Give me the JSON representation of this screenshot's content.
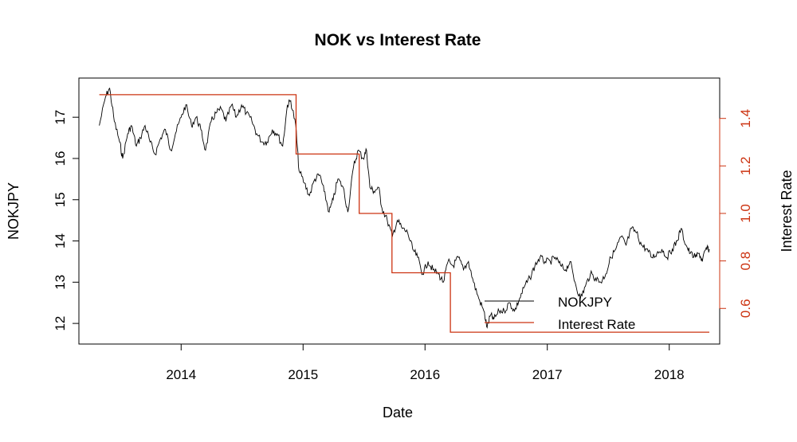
{
  "chart_data": {
    "type": "line",
    "title": "NOK vs Interest Rate",
    "xlabel": "Date",
    "ylabel": "NOKJPY",
    "ylabel_right": "Interest Rate",
    "x_ticks": [
      "2014",
      "2015",
      "2016",
      "2017",
      "2018"
    ],
    "x_range": [
      "2013-03-01",
      "2018-06-01"
    ],
    "y_ticks": [
      "12",
      "13",
      "14",
      "15",
      "16",
      "17"
    ],
    "ylim": [
      11.5,
      17.95
    ],
    "y_right_ticks": [
      "0.6",
      "0.8",
      "1.0",
      "1.2",
      "1.4"
    ],
    "ylim_right": [
      0.45,
      1.57
    ],
    "grid": false,
    "legend_position": "bottom-right",
    "colors": {
      "nokjpy": "#000000",
      "rate": "#cc3311",
      "axis": "#000000"
    },
    "series": [
      {
        "name": "NOKJPY",
        "axis": "left",
        "points": [
          [
            "2013-05-01",
            16.8
          ],
          [
            "2013-05-20",
            17.5
          ],
          [
            "2013-06-01",
            17.7
          ],
          [
            "2013-06-15",
            16.9
          ],
          [
            "2013-07-01",
            16.4
          ],
          [
            "2013-07-10",
            16.0
          ],
          [
            "2013-07-25",
            16.6
          ],
          [
            "2013-08-05",
            16.8
          ],
          [
            "2013-08-20",
            16.3
          ],
          [
            "2013-09-01",
            16.5
          ],
          [
            "2013-09-15",
            16.8
          ],
          [
            "2013-09-30",
            16.4
          ],
          [
            "2013-10-15",
            16.1
          ],
          [
            "2013-11-01",
            16.5
          ],
          [
            "2013-11-15",
            16.7
          ],
          [
            "2013-12-01",
            16.2
          ],
          [
            "2013-12-15",
            16.6
          ],
          [
            "2014-01-01",
            17.0
          ],
          [
            "2014-01-15",
            17.3
          ],
          [
            "2014-02-01",
            16.8
          ],
          [
            "2014-02-15",
            17.0
          ],
          [
            "2014-03-01",
            16.7
          ],
          [
            "2014-03-15",
            16.2
          ],
          [
            "2014-04-01",
            16.9
          ],
          [
            "2014-04-15",
            17.1
          ],
          [
            "2014-05-01",
            17.2
          ],
          [
            "2014-05-15",
            16.9
          ],
          [
            "2014-06-01",
            17.3
          ],
          [
            "2014-06-15",
            17.0
          ],
          [
            "2014-07-01",
            17.3
          ],
          [
            "2014-07-15",
            17.1
          ],
          [
            "2014-08-01",
            16.9
          ],
          [
            "2014-08-15",
            16.6
          ],
          [
            "2014-09-01",
            16.4
          ],
          [
            "2014-09-15",
            16.4
          ],
          [
            "2014-10-01",
            16.7
          ],
          [
            "2014-10-15",
            16.6
          ],
          [
            "2014-11-01",
            16.3
          ],
          [
            "2014-11-15",
            17.3
          ],
          [
            "2014-11-25",
            17.4
          ],
          [
            "2014-12-10",
            16.8
          ],
          [
            "2014-12-20",
            15.7
          ],
          [
            "2015-01-05",
            15.4
          ],
          [
            "2015-01-20",
            15.1
          ],
          [
            "2015-02-05",
            15.5
          ],
          [
            "2015-02-20",
            15.6
          ],
          [
            "2015-03-05",
            15.2
          ],
          [
            "2015-03-20",
            14.7
          ],
          [
            "2015-04-01",
            15.0
          ],
          [
            "2015-04-15",
            15.5
          ],
          [
            "2015-05-01",
            15.3
          ],
          [
            "2015-05-15",
            14.7
          ],
          [
            "2015-06-01",
            15.8
          ],
          [
            "2015-06-15",
            16.2
          ],
          [
            "2015-06-30",
            16.0
          ],
          [
            "2015-07-10",
            16.2
          ],
          [
            "2015-07-20",
            15.3
          ],
          [
            "2015-08-01",
            15.2
          ],
          [
            "2015-08-15",
            15.3
          ],
          [
            "2015-08-25",
            14.8
          ],
          [
            "2015-09-10",
            14.5
          ],
          [
            "2015-09-25",
            14.1
          ],
          [
            "2015-10-10",
            14.5
          ],
          [
            "2015-10-25",
            14.3
          ],
          [
            "2015-11-10",
            14.2
          ],
          [
            "2015-11-25",
            13.8
          ],
          [
            "2015-12-10",
            13.6
          ],
          [
            "2015-12-25",
            13.2
          ],
          [
            "2016-01-10",
            13.5
          ],
          [
            "2016-01-25",
            13.3
          ],
          [
            "2016-02-10",
            13.2
          ],
          [
            "2016-02-25",
            13.0
          ],
          [
            "2016-03-10",
            13.5
          ],
          [
            "2016-03-25",
            13.4
          ],
          [
            "2016-04-10",
            13.6
          ],
          [
            "2016-04-25",
            13.3
          ],
          [
            "2016-05-10",
            13.5
          ],
          [
            "2016-05-25",
            13.0
          ],
          [
            "2016-06-10",
            12.6
          ],
          [
            "2016-06-25",
            12.3
          ],
          [
            "2016-07-05",
            11.9
          ],
          [
            "2016-07-15",
            12.2
          ],
          [
            "2016-07-25",
            12.1
          ],
          [
            "2016-08-10",
            12.3
          ],
          [
            "2016-08-25",
            12.3
          ],
          [
            "2016-09-10",
            12.5
          ],
          [
            "2016-09-25",
            12.3
          ],
          [
            "2016-10-10",
            12.6
          ],
          [
            "2016-10-25",
            12.9
          ],
          [
            "2016-11-10",
            13.1
          ],
          [
            "2016-11-25",
            13.4
          ],
          [
            "2016-12-10",
            13.6
          ],
          [
            "2016-12-25",
            13.5
          ],
          [
            "2017-01-10",
            13.5
          ],
          [
            "2017-01-25",
            13.6
          ],
          [
            "2017-02-10",
            13.4
          ],
          [
            "2017-02-25",
            13.3
          ],
          [
            "2017-03-10",
            13.5
          ],
          [
            "2017-03-25",
            13.0
          ],
          [
            "2017-04-10",
            12.6
          ],
          [
            "2017-04-25",
            12.9
          ],
          [
            "2017-05-10",
            13.2
          ],
          [
            "2017-05-25",
            13.1
          ],
          [
            "2017-06-10",
            13.0
          ],
          [
            "2017-06-25",
            13.2
          ],
          [
            "2017-07-10",
            13.6
          ],
          [
            "2017-07-25",
            13.8
          ],
          [
            "2017-08-10",
            14.1
          ],
          [
            "2017-08-25",
            13.9
          ],
          [
            "2017-09-10",
            14.3
          ],
          [
            "2017-09-25",
            14.2
          ],
          [
            "2017-10-10",
            13.9
          ],
          [
            "2017-10-25",
            13.8
          ],
          [
            "2017-11-10",
            13.6
          ],
          [
            "2017-11-25",
            13.7
          ],
          [
            "2017-12-10",
            13.8
          ],
          [
            "2017-12-25",
            13.6
          ],
          [
            "2018-01-10",
            13.8
          ],
          [
            "2018-01-25",
            14.0
          ],
          [
            "2018-02-05",
            14.3
          ],
          [
            "2018-02-20",
            13.9
          ],
          [
            "2018-03-05",
            13.7
          ],
          [
            "2018-03-20",
            13.6
          ],
          [
            "2018-04-01",
            13.7
          ],
          [
            "2018-04-10",
            13.5
          ],
          [
            "2018-04-20",
            13.8
          ],
          [
            "2018-05-01",
            13.8
          ]
        ]
      },
      {
        "name": "Interest Rate",
        "axis": "right",
        "step": true,
        "points": [
          [
            "2013-05-01",
            1.5
          ],
          [
            "2014-12-11",
            1.5
          ],
          [
            "2014-12-11",
            1.25
          ],
          [
            "2015-06-18",
            1.25
          ],
          [
            "2015-06-18",
            1.0
          ],
          [
            "2015-09-24",
            1.0
          ],
          [
            "2015-09-24",
            0.75
          ],
          [
            "2016-03-17",
            0.75
          ],
          [
            "2016-03-17",
            0.5
          ],
          [
            "2018-05-01",
            0.5
          ]
        ]
      }
    ]
  }
}
